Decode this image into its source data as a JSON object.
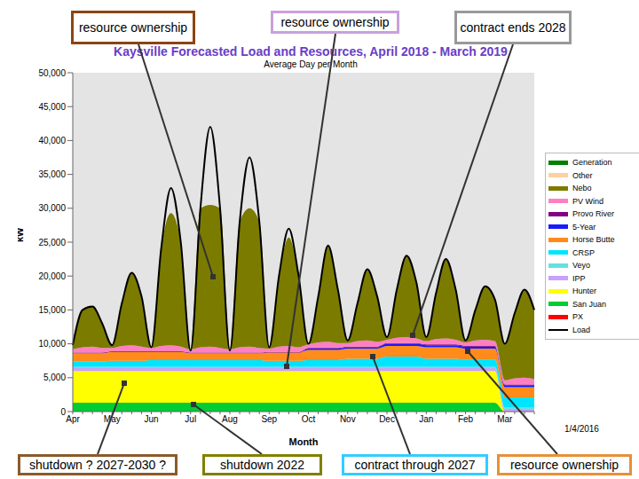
{
  "chart_data": {
    "type": "area",
    "title": "Kaysville Forecasted Load and Resources, April 2018 - March 2019",
    "subtitle": "Average Day per Month",
    "x_label": "Month",
    "y_label": "kW",
    "footnote": "1/4/2016",
    "stacked": true,
    "grid": false,
    "legend": "right",
    "categories": [
      "Apr",
      null,
      null,
      null,
      "May",
      null,
      null,
      null,
      "Jun",
      null,
      null,
      null,
      "Jul",
      null,
      null,
      null,
      "Aug",
      null,
      null,
      null,
      "Sep",
      null,
      null,
      null,
      "Oct",
      null,
      null,
      null,
      "Nov",
      null,
      null,
      null,
      "Dec",
      null,
      null,
      null,
      "Jan",
      null,
      null,
      null,
      "Feb",
      null,
      null,
      null,
      "Mar",
      null,
      null,
      null
    ],
    "ylim": [
      0,
      50000
    ],
    "yticks": [
      0,
      {
        "value": 5000,
        "label": "5,000"
      },
      {
        "value": 10000,
        "label": "10,000"
      },
      {
        "value": 15000,
        "label": "15,000"
      },
      {
        "value": 20000,
        "label": "20,000"
      },
      {
        "value": 25000,
        "label": "25,000"
      },
      {
        "value": 30000,
        "label": "30,000"
      },
      {
        "value": 35000,
        "label": "35,000"
      },
      {
        "value": 40000,
        "label": "40,000"
      },
      {
        "value": 45000,
        "label": "45,000"
      },
      {
        "value": 50000,
        "label": "50,000"
      }
    ],
    "series": [
      {
        "name": "PX",
        "color": "#ff0000",
        "values": [
          0,
          0,
          0,
          0,
          0,
          0,
          0,
          0,
          0,
          0,
          0,
          0,
          0,
          0,
          0,
          0,
          0,
          0,
          0,
          0,
          0,
          0,
          0,
          0,
          0,
          0,
          0,
          0,
          0,
          0,
          0,
          0,
          0,
          0,
          0,
          0,
          0,
          0,
          0,
          0,
          0,
          0,
          0,
          0,
          0,
          0,
          0,
          0
        ]
      },
      {
        "name": "San Juan",
        "color": "#00cc33",
        "values": [
          1300,
          1300,
          1300,
          1300,
          1300,
          1300,
          1300,
          1300,
          1300,
          1300,
          1300,
          1300,
          1300,
          1300,
          1300,
          1300,
          1300,
          1300,
          1300,
          1300,
          1300,
          1300,
          1300,
          1300,
          1300,
          1300,
          1300,
          1300,
          1300,
          1300,
          1300,
          1300,
          1300,
          1300,
          1300,
          1300,
          1300,
          1300,
          1300,
          1300,
          1300,
          1300,
          1300,
          1300,
          0,
          0,
          0,
          0
        ]
      },
      {
        "name": "Hunter",
        "color": "#ffff00",
        "values": [
          4700,
          4700,
          4700,
          4700,
          4700,
          4700,
          4700,
          4700,
          4700,
          4700,
          4700,
          4700,
          4700,
          4700,
          4700,
          4700,
          4700,
          4700,
          4700,
          4700,
          4700,
          4700,
          4700,
          4700,
          4700,
          4700,
          4700,
          4700,
          4700,
          4700,
          4700,
          4700,
          4700,
          4700,
          4700,
          4700,
          4700,
          4700,
          4700,
          4700,
          4700,
          4700,
          4700,
          4700,
          0,
          0,
          0,
          0
        ]
      },
      {
        "name": "IPP",
        "color": "#c8a0ff",
        "values": [
          400,
          400,
          400,
          400,
          400,
          400,
          400,
          400,
          400,
          400,
          400,
          400,
          400,
          400,
          400,
          400,
          400,
          400,
          400,
          400,
          400,
          400,
          400,
          400,
          400,
          400,
          400,
          400,
          400,
          400,
          400,
          400,
          400,
          400,
          400,
          400,
          400,
          400,
          400,
          400,
          400,
          400,
          400,
          400,
          400,
          400,
          400,
          400
        ]
      },
      {
        "name": "Veyo",
        "color": "#66e0e0",
        "values": [
          200,
          200,
          200,
          200,
          200,
          200,
          200,
          200,
          200,
          200,
          200,
          200,
          200,
          200,
          200,
          200,
          200,
          200,
          200,
          200,
          200,
          200,
          200,
          200,
          200,
          200,
          200,
          200,
          200,
          200,
          200,
          200,
          200,
          200,
          200,
          200,
          200,
          200,
          200,
          200,
          200,
          200,
          200,
          200,
          200,
          200,
          200,
          200
        ]
      },
      {
        "name": "CRSP",
        "color": "#00e5ff",
        "values": [
          800,
          800,
          800,
          800,
          900,
          900,
          900,
          900,
          1000,
          1000,
          1000,
          1000,
          1000,
          1000,
          1000,
          1000,
          1000,
          1000,
          1000,
          1000,
          900,
          900,
          900,
          900,
          1000,
          1000,
          1000,
          1000,
          1200,
          1200,
          1200,
          1200,
          1500,
          1500,
          1500,
          1500,
          1200,
          1200,
          1200,
          1200,
          1100,
          1100,
          1100,
          1100,
          1500,
          1500,
          1500,
          1500
        ]
      },
      {
        "name": "Horse Butte",
        "color": "#ff8c1a",
        "values": [
          1200,
          1200,
          1200,
          1200,
          1300,
          1300,
          1300,
          1300,
          1200,
          1200,
          1200,
          1200,
          1000,
          1000,
          1000,
          1000,
          1000,
          1000,
          1000,
          1000,
          1200,
          1200,
          1200,
          1200,
          1500,
          1500,
          1500,
          1500,
          1500,
          1500,
          1500,
          1500,
          1600,
          1600,
          1600,
          1600,
          1700,
          1700,
          1700,
          1700,
          1600,
          1600,
          1600,
          1600,
          1500,
          1500,
          1500,
          1500
        ]
      },
      {
        "name": "5-Year",
        "color": "#1a1aff",
        "values": [
          0,
          0,
          0,
          0,
          0,
          0,
          0,
          0,
          0,
          0,
          0,
          0,
          0,
          0,
          0,
          0,
          0,
          0,
          0,
          0,
          0,
          0,
          0,
          0,
          200,
          200,
          200,
          200,
          200,
          200,
          200,
          200,
          300,
          300,
          300,
          300,
          300,
          300,
          300,
          300,
          300,
          300,
          300,
          300,
          300,
          300,
          300,
          300
        ]
      },
      {
        "name": "Provo River",
        "color": "#800080",
        "values": [
          100,
          100,
          100,
          100,
          100,
          100,
          100,
          100,
          100,
          100,
          100,
          100,
          100,
          100,
          100,
          100,
          100,
          100,
          100,
          100,
          100,
          100,
          100,
          100,
          100,
          100,
          100,
          100,
          100,
          100,
          100,
          100,
          100,
          100,
          100,
          100,
          100,
          100,
          100,
          100,
          100,
          100,
          100,
          100,
          100,
          100,
          100,
          100
        ]
      },
      {
        "name": "PV Wind",
        "color": "#ff80c0",
        "values": [
          500,
          800,
          900,
          700,
          500,
          800,
          900,
          700,
          500,
          800,
          900,
          700,
          500,
          800,
          900,
          700,
          500,
          800,
          900,
          700,
          500,
          800,
          900,
          700,
          500,
          800,
          900,
          700,
          500,
          800,
          900,
          700,
          500,
          800,
          900,
          700,
          500,
          800,
          900,
          700,
          500,
          800,
          900,
          700,
          600,
          900,
          1000,
          800
        ]
      },
      {
        "name": "Nebo",
        "color": "#7b7b00",
        "values": [
          600,
          5500,
          5900,
          3600,
          400,
          6300,
          10700,
          7400,
          100,
          14300,
          19500,
          15400,
          0,
          20500,
          20900,
          20600,
          0,
          18500,
          20400,
          18600,
          200,
          10400,
          16000,
          10500,
          100,
          6800,
          14200,
          7900,
          400,
          5600,
          10500,
          6700,
          500,
          7200,
          12100,
          8300,
          700,
          6900,
          11800,
          7500,
          400,
          4600,
          8000,
          6200,
          5400,
          9600,
          13000,
          10200
        ]
      },
      {
        "name": "Other",
        "color": "#ffd0a0",
        "values": [
          0,
          0,
          0,
          0,
          0,
          0,
          0,
          0,
          0,
          0,
          0,
          0,
          0,
          0,
          0,
          0,
          0,
          0,
          0,
          0,
          0,
          0,
          0,
          0,
          0,
          0,
          0,
          0,
          0,
          0,
          0,
          0,
          0,
          0,
          0,
          0,
          0,
          0,
          0,
          0,
          0,
          0,
          0,
          0,
          0,
          0,
          0,
          0
        ]
      },
      {
        "name": "Generation",
        "color": "#008000",
        "values": [
          0,
          0,
          0,
          0,
          0,
          0,
          0,
          0,
          0,
          0,
          0,
          0,
          0,
          0,
          0,
          0,
          0,
          0,
          0,
          0,
          0,
          0,
          0,
          0,
          0,
          0,
          0,
          0,
          0,
          0,
          0,
          0,
          0,
          0,
          0,
          0,
          0,
          0,
          0,
          0,
          0,
          0,
          0,
          0,
          0,
          0,
          0,
          0
        ]
      },
      {
        "name": "Load",
        "color": "#000000",
        "type": "line",
        "values": [
          9800,
          15000,
          15500,
          13000,
          9800,
          16000,
          20500,
          17000,
          9500,
          24000,
          33000,
          25000,
          9000,
          30000,
          42000,
          30000,
          9000,
          28000,
          37500,
          28000,
          9500,
          20000,
          27000,
          20000,
          10000,
          17000,
          24500,
          18000,
          10500,
          16000,
          21000,
          17000,
          11000,
          18000,
          23000,
          19000,
          11000,
          17500,
          22500,
          18000,
          10500,
          15000,
          18500,
          16500,
          10000,
          14500,
          18000,
          15000
        ]
      }
    ],
    "annotations": [
      "resource ownership",
      "resource ownership",
      "contract ends 2028",
      "shutdown ? 2027-2030 ?",
      "shutdown 2022",
      "contract through 2027",
      "resource ownership"
    ]
  }
}
